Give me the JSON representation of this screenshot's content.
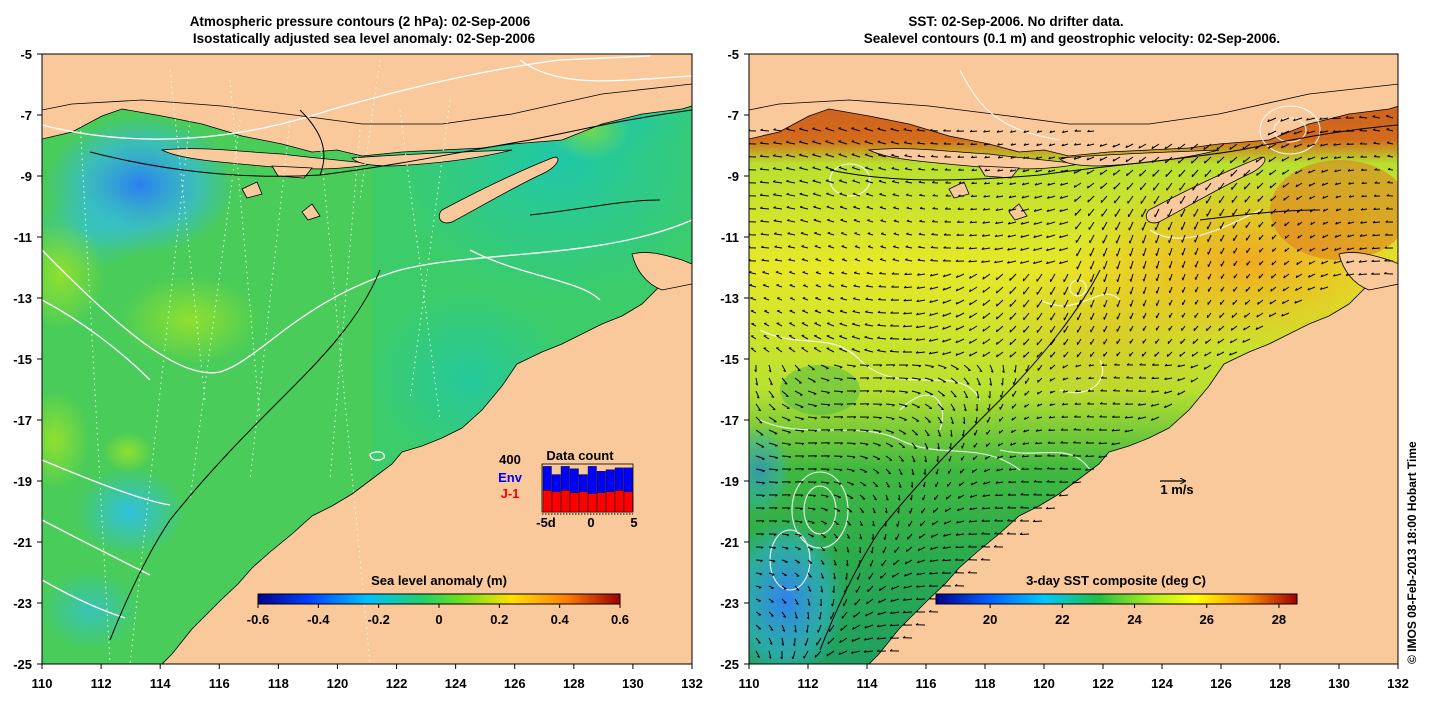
{
  "left_panel": {
    "title_line1": "Atmospheric pressure contours (2 hPa): 02-Sep-2006",
    "title_line2": "Isostatically adjusted sea level anomaly: 02-Sep-2006",
    "x_ticks": [
      "110",
      "112",
      "114",
      "116",
      "118",
      "120",
      "122",
      "124",
      "126",
      "128",
      "130",
      "132"
    ],
    "y_ticks": [
      "-5",
      "-7",
      "-9",
      "-11",
      "-13",
      "-15",
      "-17",
      "-19",
      "-21",
      "-23",
      "-25"
    ],
    "colorbar": {
      "title": "Sea level anomaly (m)",
      "ticks": [
        "-0.6",
        "-0.4",
        "-0.2",
        "0",
        "0.2",
        "0.4",
        "0.6"
      ],
      "range": [
        -0.6,
        0.6
      ]
    },
    "data_count_inset": {
      "title": "Data count",
      "max_label": "400",
      "series_env": "Env",
      "series_j1": "J-1",
      "x_labels": [
        "-5d",
        "0",
        "5"
      ],
      "env_color": "#0000ff",
      "j1_color": "#ff0000",
      "bars_total": [
        0.95,
        0.78,
        0.95,
        0.9,
        0.78,
        0.95,
        0.85,
        0.88,
        0.92,
        0.92
      ],
      "bars_j1": [
        0.45,
        0.42,
        0.45,
        0.4,
        0.42,
        0.38,
        0.4,
        0.42,
        0.45,
        0.42
      ]
    }
  },
  "right_panel": {
    "title_line1": "SST: 02-Sep-2006. No drifter data.",
    "title_line2": "Sealevel contours (0.1 m) and geostrophic velocity: 02-Sep-2006.",
    "x_ticks": [
      "110",
      "112",
      "114",
      "116",
      "118",
      "120",
      "122",
      "124",
      "126",
      "128",
      "130",
      "132"
    ],
    "y_ticks": [
      "-5",
      "-7",
      "-9",
      "-11",
      "-13",
      "-15",
      "-17",
      "-19",
      "-21",
      "-23",
      "-25"
    ],
    "colorbar": {
      "title": "3-day SST composite (deg C)",
      "ticks": [
        "20",
        "22",
        "24",
        "26",
        "28"
      ],
      "range": [
        18.5,
        28.5
      ]
    },
    "velocity_scale_label": "1 m/s"
  },
  "credit": "© IMOS 08-Feb-2013 18:00 Hobart Time",
  "colors": {
    "land": "#f9c89b",
    "sla_ocean": "#3ccc6a",
    "sst_north": "#c4561e",
    "sst_mid": "#e6e830",
    "sst_south": "#2ea84a"
  }
}
